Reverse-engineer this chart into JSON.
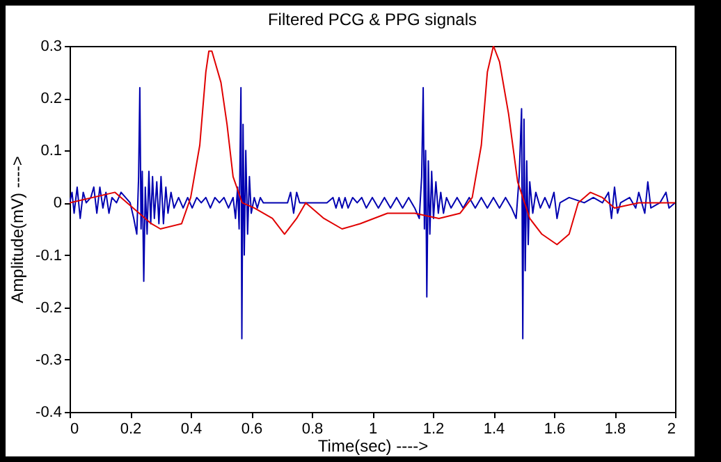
{
  "chart_data": {
    "type": "line",
    "title": "Filtered PCG & PPG signals",
    "xlabel": "Time(sec) ---->",
    "ylabel": "Amplitude(mV) ---->",
    "xlim": [
      0,
      2
    ],
    "xticks": [
      0,
      0.2,
      0.4,
      0.6,
      0.8,
      1,
      1.2,
      1.4,
      1.6,
      1.8,
      2
    ],
    "ylim": [
      -0.4,
      0.3
    ],
    "yticks": [
      -0.4,
      -0.3,
      -0.2,
      -0.1,
      0,
      0.1,
      0.2,
      0.3
    ],
    "grid": false,
    "legend": false,
    "marker": "none",
    "line_style": "solid",
    "series": [
      {
        "color": "#0000b0",
        "x": [
          0,
          0.008,
          0.015,
          0.025,
          0.035,
          0.045,
          0.055,
          0.07,
          0.08,
          0.09,
          0.1,
          0.11,
          0.12,
          0.13,
          0.14,
          0.155,
          0.17,
          0.185,
          0.2,
          0.212,
          0.222,
          0.228,
          0.232,
          0.236,
          0.24,
          0.245,
          0.25,
          0.256,
          0.262,
          0.268,
          0.274,
          0.28,
          0.288,
          0.295,
          0.302,
          0.31,
          0.318,
          0.325,
          0.335,
          0.345,
          0.36,
          0.375,
          0.39,
          0.405,
          0.42,
          0.435,
          0.45,
          0.465,
          0.48,
          0.495,
          0.51,
          0.525,
          0.54,
          0.548,
          0.555,
          0.56,
          0.566,
          0.569,
          0.573,
          0.577,
          0.582,
          0.588,
          0.594,
          0.6,
          0.61,
          0.62,
          0.63,
          0.64,
          0.66,
          0.7,
          0.72,
          0.73,
          0.74,
          0.75,
          0.76,
          0.8,
          0.85,
          0.87,
          0.88,
          0.89,
          0.9,
          0.91,
          0.92,
          0.935,
          0.95,
          0.965,
          0.98,
          1.0,
          1.02,
          1.04,
          1.06,
          1.08,
          1.1,
          1.12,
          1.14,
          1.155,
          1.163,
          1.168,
          1.172,
          1.176,
          1.18,
          1.185,
          1.19,
          1.196,
          1.202,
          1.21,
          1.218,
          1.226,
          1.235,
          1.245,
          1.26,
          1.28,
          1.3,
          1.32,
          1.34,
          1.36,
          1.38,
          1.4,
          1.42,
          1.44,
          1.46,
          1.475,
          1.485,
          1.493,
          1.497,
          1.501,
          1.505,
          1.51,
          1.515,
          1.52,
          1.53,
          1.54,
          1.555,
          1.57,
          1.585,
          1.6,
          1.61,
          1.62,
          1.65,
          1.7,
          1.73,
          1.76,
          1.78,
          1.79,
          1.8,
          1.81,
          1.82,
          1.85,
          1.87,
          1.88,
          1.9,
          1.91,
          1.92,
          1.95,
          1.97,
          1.98,
          2.0
        ],
        "values": [
          0,
          0.02,
          -0.02,
          0.03,
          -0.03,
          0.02,
          0,
          0.01,
          0.03,
          -0.02,
          0.03,
          -0.01,
          0.02,
          -0.02,
          0.01,
          0,
          0.02,
          0.01,
          0,
          -0.03,
          -0.06,
          0.05,
          0.22,
          -0.05,
          0.06,
          -0.15,
          0.03,
          -0.06,
          0.06,
          -0.04,
          0.05,
          -0.03,
          0.04,
          -0.04,
          0.05,
          -0.04,
          0.03,
          -0.02,
          0.02,
          -0.01,
          0.01,
          -0.01,
          0.01,
          -0.01,
          0.01,
          0,
          0.01,
          -0.01,
          0.01,
          0,
          0.01,
          -0.01,
          0.01,
          -0.03,
          0.03,
          -0.05,
          0.22,
          -0.26,
          0.15,
          -0.1,
          0.1,
          -0.06,
          0.05,
          -0.02,
          0.01,
          -0.01,
          0.01,
          0,
          0,
          0,
          0,
          0.02,
          -0.02,
          0.02,
          0,
          0,
          0,
          0.01,
          -0.01,
          0.01,
          -0.01,
          0.01,
          -0.01,
          0.01,
          0,
          0.01,
          -0.01,
          0.01,
          -0.01,
          0.01,
          -0.01,
          0.01,
          -0.01,
          0.01,
          -0.01,
          -0.03,
          0.05,
          0.22,
          -0.05,
          0.1,
          -0.18,
          0.08,
          -0.06,
          0.06,
          -0.03,
          0.04,
          -0.02,
          0.02,
          -0.02,
          0.01,
          -0.01,
          0.01,
          -0.01,
          0.01,
          -0.01,
          0.01,
          -0.01,
          0.01,
          -0.01,
          0.01,
          -0.01,
          -0.03,
          0.05,
          0.18,
          -0.26,
          0.16,
          -0.13,
          0.08,
          -0.08,
          0.04,
          -0.02,
          0.02,
          -0.01,
          0.01,
          -0.01,
          0.02,
          -0.03,
          0,
          0.01,
          0,
          0.01,
          0,
          0.02,
          -0.03,
          0.03,
          -0.02,
          0,
          0.01,
          -0.01,
          0.02,
          -0.02,
          0.04,
          -0.01,
          0,
          0.02,
          -0.01,
          0
        ]
      },
      {
        "color": "#e00000",
        "x": [
          0,
          0.15,
          0.21,
          0.27,
          0.3,
          0.37,
          0.4,
          0.43,
          0.45,
          0.46,
          0.47,
          0.5,
          0.52,
          0.54,
          0.57,
          0.61,
          0.67,
          0.71,
          0.75,
          0.78,
          0.84,
          0.9,
          0.96,
          1.05,
          1.14,
          1.22,
          1.29,
          1.33,
          1.36,
          1.38,
          1.4,
          1.42,
          1.45,
          1.48,
          1.52,
          1.56,
          1.61,
          1.65,
          1.68,
          1.72,
          1.76,
          1.8,
          1.88,
          2.0
        ],
        "values": [
          0,
          0.02,
          -0.01,
          -0.04,
          -0.05,
          -0.04,
          0.01,
          0.11,
          0.25,
          0.29,
          0.29,
          0.23,
          0.15,
          0.05,
          0,
          -0.01,
          -0.03,
          -0.06,
          -0.03,
          0,
          -0.03,
          -0.05,
          -0.04,
          -0.02,
          -0.02,
          -0.03,
          -0.02,
          0.01,
          0.11,
          0.25,
          0.3,
          0.27,
          0.17,
          0.04,
          -0.03,
          -0.06,
          -0.08,
          -0.06,
          0,
          0.02,
          0.01,
          -0.01,
          0,
          0
        ]
      }
    ]
  }
}
